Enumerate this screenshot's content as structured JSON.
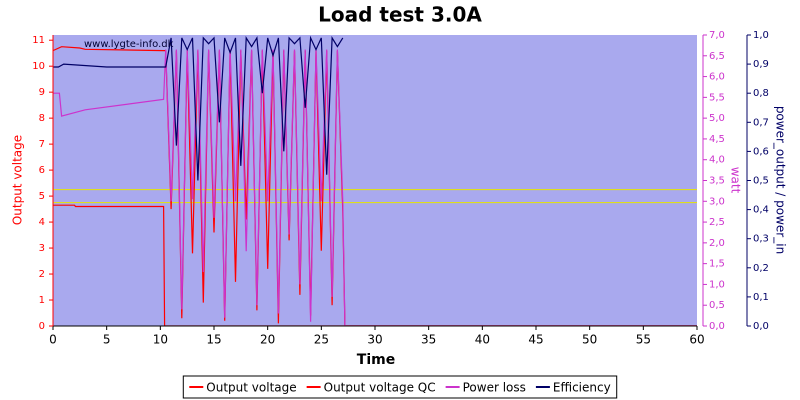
{
  "chart_data": {
    "type": "line",
    "title": "Load test 3.0A",
    "xlabel": "Time",
    "ylabel": "Output voltage",
    "y2label": "watt",
    "y3label": "power_output / power_in",
    "watermark": "www.lygte-info.dk",
    "xlim": [
      0,
      60
    ],
    "xticks": [
      0,
      5,
      10,
      15,
      20,
      25,
      30,
      35,
      40,
      45,
      50,
      55,
      60
    ],
    "ylim": [
      0,
      11.2
    ],
    "yticks": [
      0,
      1,
      2,
      3,
      4,
      5,
      6,
      7,
      8,
      9,
      10,
      11
    ],
    "y2lim": [
      0,
      7
    ],
    "y2ticks": [
      {
        "value": 0,
        "label": "0,0"
      },
      {
        "value": 0.5,
        "label": "0,5"
      },
      {
        "value": 1,
        "label": "1,0"
      },
      {
        "value": 1.5,
        "label": "1,5"
      },
      {
        "value": 2,
        "label": "2,0"
      },
      {
        "value": 2.5,
        "label": "2,5"
      },
      {
        "value": 3,
        "label": "3,0"
      },
      {
        "value": 3.5,
        "label": "3,5"
      },
      {
        "value": 4,
        "label": "4,0"
      },
      {
        "value": 4.5,
        "label": "4,5"
      },
      {
        "value": 5,
        "label": "5,0"
      },
      {
        "value": 5.5,
        "label": "5,5"
      },
      {
        "value": 6,
        "label": "6,0"
      },
      {
        "value": 6.5,
        "label": "6,5"
      },
      {
        "value": 7,
        "label": "7,0"
      }
    ],
    "y3lim": [
      0,
      1
    ],
    "y3ticks": [
      {
        "value": 0,
        "label": "0,0"
      },
      {
        "value": 0.1,
        "label": "0,1"
      },
      {
        "value": 0.2,
        "label": "0,2"
      },
      {
        "value": 0.3,
        "label": "0,3"
      },
      {
        "value": 0.4,
        "label": "0,4"
      },
      {
        "value": 0.5,
        "label": "0,5"
      },
      {
        "value": 0.6,
        "label": "0,6"
      },
      {
        "value": 0.7,
        "label": "0,7"
      },
      {
        "value": 0.8,
        "label": "0,8"
      },
      {
        "value": 0.9,
        "label": "0,9"
      },
      {
        "value": 1,
        "label": "1,0"
      }
    ],
    "hlines": [
      5.25,
      4.75
    ],
    "hline_color": "#e6e600",
    "background": "#a9a9ee",
    "series": [
      {
        "name": "Output voltage",
        "color": "#ff0000",
        "x": [
          0,
          2,
          2.1,
          10.3,
          10.4,
          60
        ],
        "values": [
          4.65,
          4.65,
          4.6,
          4.6,
          0,
          0
        ]
      },
      {
        "name": "Output voltage QC",
        "color": "#ff0000",
        "x": [
          0,
          0.8,
          2.5,
          3,
          10.3,
          10.5,
          11,
          11.5,
          12,
          12.5,
          13,
          13.5,
          14,
          14.5,
          15,
          15.5,
          16,
          16.5,
          17,
          17.5,
          18,
          18.5,
          19,
          19.5,
          20,
          20.5,
          21,
          21.5,
          22,
          22.5,
          23,
          23.5,
          24,
          24.5,
          25,
          25.5,
          26,
          26.5,
          27,
          27.2,
          60
        ],
        "values": [
          10.6,
          10.75,
          10.7,
          10.65,
          10.6,
          10.6,
          4.5,
          10.6,
          0.3,
          10.6,
          2.8,
          10.6,
          0.9,
          10.6,
          3.6,
          10.6,
          0.2,
          10.6,
          1.7,
          10.6,
          4.1,
          10.6,
          0.6,
          10.6,
          2.2,
          10.6,
          0.1,
          10.6,
          3.3,
          10.6,
          1.2,
          10.6,
          0.4,
          10.6,
          2.9,
          10.6,
          0.8,
          10.6,
          4.4,
          0,
          0
        ]
      },
      {
        "name": "Power loss",
        "color": "#cc33cc",
        "axis": "y2",
        "x": [
          0,
          0.6,
          0.8,
          3,
          10.3,
          10.5,
          11,
          11.5,
          12,
          12.5,
          13,
          13.5,
          14,
          14.5,
          15,
          15.5,
          16,
          16.5,
          17,
          17.5,
          18,
          18.5,
          19,
          19.5,
          20,
          20.5,
          21,
          21.5,
          22,
          22.5,
          23,
          23.5,
          24,
          24.5,
          25,
          25.5,
          26,
          26.5,
          27,
          27.2,
          60
        ],
        "values": [
          5.6,
          5.6,
          5.05,
          5.2,
          5.45,
          6.65,
          3.0,
          6.65,
          0.4,
          6.65,
          3.05,
          6.65,
          1.3,
          6.65,
          2.6,
          6.65,
          0.2,
          6.65,
          3.0,
          6.65,
          1.8,
          6.65,
          0.5,
          6.65,
          3.0,
          6.65,
          0.3,
          6.65,
          2.2,
          6.65,
          1.0,
          6.65,
          0.1,
          6.65,
          3.0,
          6.65,
          0.7,
          6.65,
          3.0,
          0,
          0
        ]
      },
      {
        "name": "Efficiency",
        "color": "#000066",
        "axis": "y3",
        "x": [
          0,
          0.5,
          1,
          5,
          10.5,
          11,
          11.5,
          12,
          12.5,
          13,
          13.5,
          14,
          14.5,
          15,
          15.5,
          16,
          16.5,
          17,
          17.5,
          18,
          18.5,
          19,
          19.5,
          20,
          20.5,
          21,
          21.5,
          22,
          22.5,
          23,
          23.5,
          24,
          24.5,
          25,
          25.5,
          26,
          26.5,
          27
        ],
        "values": [
          0.89,
          0.89,
          0.9,
          0.89,
          0.89,
          0.99,
          0.62,
          0.99,
          0.95,
          0.99,
          0.5,
          0.99,
          0.97,
          0.99,
          0.7,
          0.99,
          0.94,
          0.99,
          0.55,
          0.99,
          0.96,
          0.99,
          0.8,
          0.99,
          0.93,
          0.99,
          0.6,
          0.99,
          0.97,
          0.99,
          0.75,
          0.99,
          0.95,
          0.99,
          0.52,
          0.99,
          0.96,
          0.99
        ]
      }
    ]
  }
}
